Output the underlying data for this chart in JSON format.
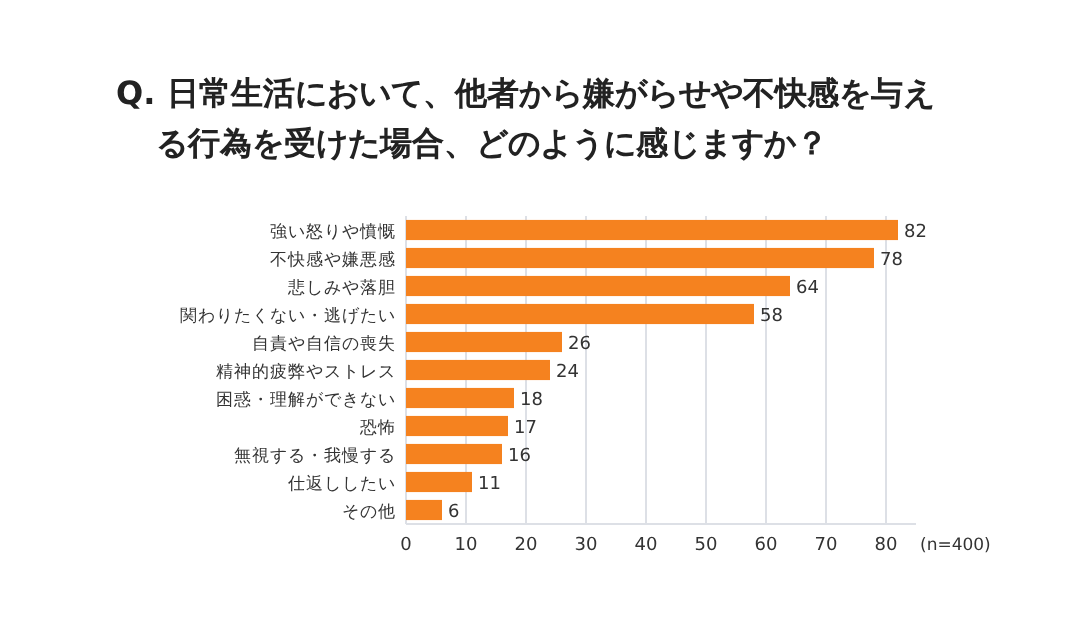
{
  "chart_data": {
    "type": "bar",
    "orientation": "horizontal",
    "title": "Q. 日常生活において、他者から嫌がらせや不快感を与える行為を受けた場合、どのように感じますか？",
    "categories": [
      "強い怒りや憤慨",
      "不快感や嫌悪感",
      "悲しみや落胆",
      "関わりたくない・逃げたい",
      "自責や自信の喪失",
      "精神的疲弊やストレス",
      "困惑・理解ができない",
      "恐怖",
      "無視する・我慢する",
      "仕返ししたい",
      "その他"
    ],
    "values": [
      82,
      78,
      64,
      58,
      26,
      24,
      18,
      17,
      16,
      11,
      6
    ],
    "color": "#f5821f",
    "xlim": [
      0,
      85
    ],
    "xticks": [
      0,
      10,
      20,
      30,
      40,
      50,
      60,
      70,
      80
    ],
    "grid": "x",
    "data_labels": true,
    "annotations": [
      "(n=400)"
    ]
  }
}
